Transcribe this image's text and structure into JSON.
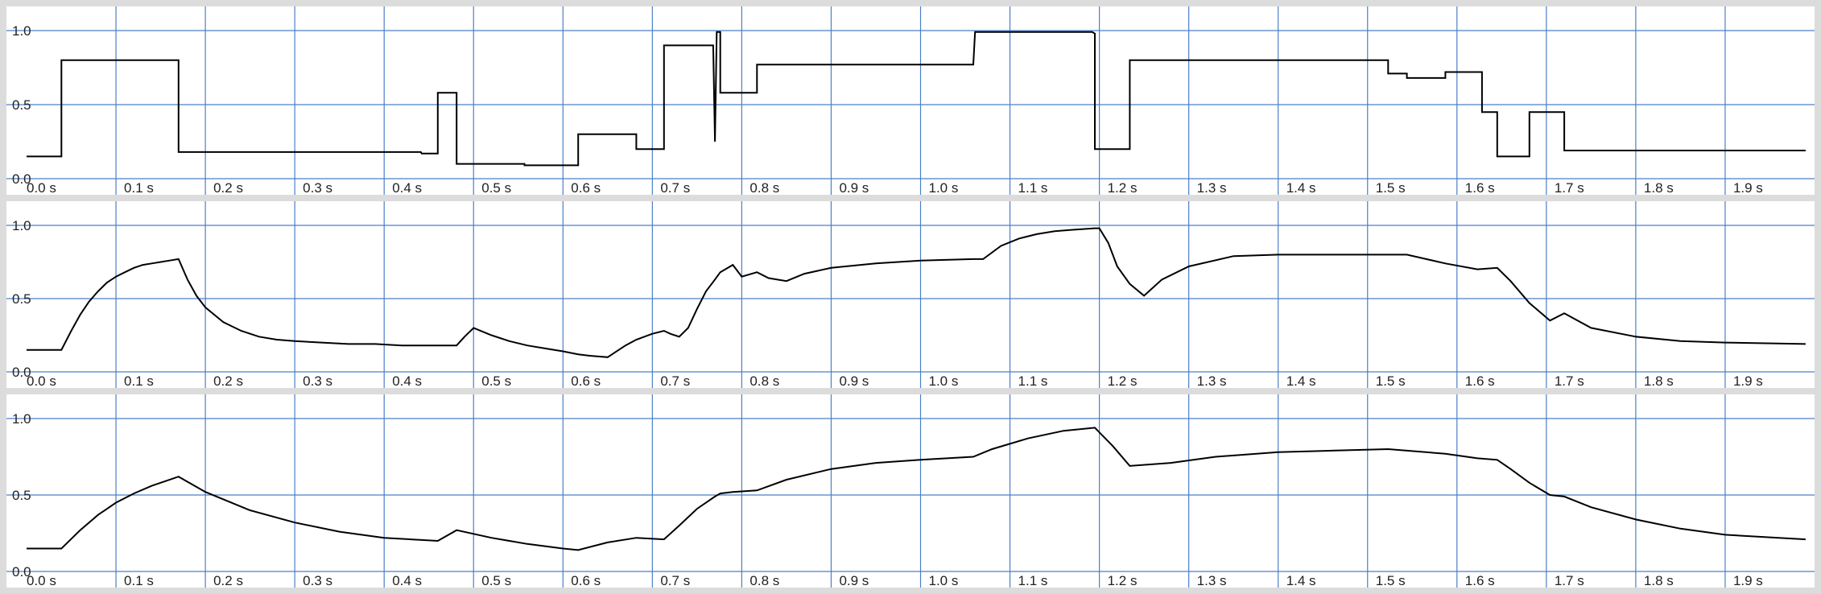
{
  "colors": {
    "background": "#dcdcdc",
    "panel": "#ffffff",
    "grid": "#4a7fc8",
    "line": "#000000"
  },
  "chart_data": [
    {
      "type": "line",
      "xlim": [
        0,
        2.0
      ],
      "ylim": [
        0,
        1
      ],
      "grid": true,
      "x_ticks": [
        "0.0 s",
        "0.1 s",
        "0.2 s",
        "0.3 s",
        "0.4 s",
        "0.5 s",
        "0.6 s",
        "0.7 s",
        "0.8 s",
        "0.9 s",
        "1.0 s",
        "1.1 s",
        "1.2 s",
        "1.3 s",
        "1.4 s",
        "1.5 s",
        "1.6 s",
        "1.7 s",
        "1.8 s",
        "1.9 s"
      ],
      "y_ticks": [
        "0.0",
        "0.5",
        "1.0"
      ],
      "series": [
        {
          "x": [
            0,
            0.039,
            0.039,
            0.17,
            0.17,
            0.441,
            0.442,
            0.46,
            0.46,
            0.481,
            0.481,
            0.557,
            0.557,
            0.617,
            0.617,
            0.682,
            0.682,
            0.713,
            0.713,
            0.768,
            0.77,
            0.772,
            0.776,
            0.776,
            0.817,
            0.817,
            1.059,
            1.061,
            1.076,
            1.076,
            1.192,
            1.195,
            1.195,
            1.234,
            1.234,
            1.523,
            1.523,
            1.544,
            1.544,
            1.587,
            1.587,
            1.623,
            1.623,
            1.628,
            1.628,
            1.645,
            1.645,
            1.681,
            1.681,
            1.704,
            1.704,
            1.72,
            1.72,
            1.99
          ],
          "y": [
            0.15,
            0.15,
            0.8,
            0.8,
            0.18,
            0.18,
            0.17,
            0.17,
            0.58,
            0.58,
            0.1,
            0.1,
            0.09,
            0.09,
            0.3,
            0.3,
            0.2,
            0.2,
            0.9,
            0.9,
            0.25,
            0.99,
            0.99,
            0.58,
            0.58,
            0.77,
            0.77,
            0.99,
            0.99,
            0.99,
            0.99,
            0.98,
            0.2,
            0.2,
            0.8,
            0.8,
            0.71,
            0.71,
            0.68,
            0.68,
            0.72,
            0.72,
            0.72,
            0.72,
            0.45,
            0.45,
            0.15,
            0.15,
            0.45,
            0.45,
            0.45,
            0.45,
            0.19,
            0.19
          ]
        }
      ]
    },
    {
      "type": "line",
      "xlim": [
        0,
        2.0
      ],
      "ylim": [
        0,
        1
      ],
      "grid": true,
      "x_ticks": [
        "0.0 s",
        "0.1 s",
        "0.2 s",
        "0.3 s",
        "0.4 s",
        "0.5 s",
        "0.6 s",
        "0.7 s",
        "0.8 s",
        "0.9 s",
        "1.0 s",
        "1.1 s",
        "1.2 s",
        "1.3 s",
        "1.4 s",
        "1.5 s",
        "1.6 s",
        "1.7 s",
        "1.8 s",
        "1.9 s"
      ],
      "y_ticks": [
        "0.0",
        "0.5",
        "1.0"
      ],
      "series": [
        {
          "x": [
            0,
            0.039,
            0.05,
            0.06,
            0.07,
            0.08,
            0.09,
            0.1,
            0.11,
            0.12,
            0.13,
            0.14,
            0.15,
            0.16,
            0.17,
            0.18,
            0.19,
            0.2,
            0.22,
            0.24,
            0.26,
            0.28,
            0.3,
            0.33,
            0.36,
            0.39,
            0.42,
            0.46,
            0.481,
            0.49,
            0.5,
            0.52,
            0.54,
            0.56,
            0.58,
            0.6,
            0.617,
            0.63,
            0.65,
            0.67,
            0.682,
            0.7,
            0.713,
            0.72,
            0.73,
            0.74,
            0.75,
            0.76,
            0.77,
            0.776,
            0.79,
            0.8,
            0.817,
            0.83,
            0.85,
            0.87,
            0.9,
            0.95,
            1.0,
            1.059,
            1.07,
            1.09,
            1.11,
            1.13,
            1.15,
            1.17,
            1.195,
            1.2,
            1.21,
            1.22,
            1.234,
            1.25,
            1.27,
            1.3,
            1.35,
            1.4,
            1.45,
            1.523,
            1.544,
            1.587,
            1.623,
            1.645,
            1.66,
            1.681,
            1.704,
            1.72,
            1.75,
            1.8,
            1.85,
            1.9,
            1.99
          ],
          "y": [
            0.15,
            0.15,
            0.28,
            0.39,
            0.48,
            0.55,
            0.61,
            0.65,
            0.68,
            0.71,
            0.73,
            0.74,
            0.75,
            0.76,
            0.77,
            0.63,
            0.52,
            0.44,
            0.34,
            0.28,
            0.24,
            0.22,
            0.21,
            0.2,
            0.19,
            0.19,
            0.18,
            0.18,
            0.18,
            0.24,
            0.3,
            0.25,
            0.21,
            0.18,
            0.16,
            0.14,
            0.12,
            0.11,
            0.1,
            0.18,
            0.22,
            0.26,
            0.28,
            0.26,
            0.24,
            0.3,
            0.43,
            0.55,
            0.63,
            0.68,
            0.73,
            0.65,
            0.68,
            0.64,
            0.62,
            0.67,
            0.71,
            0.74,
            0.76,
            0.77,
            0.77,
            0.86,
            0.91,
            0.94,
            0.96,
            0.97,
            0.98,
            0.98,
            0.88,
            0.72,
            0.6,
            0.52,
            0.63,
            0.72,
            0.79,
            0.8,
            0.8,
            0.8,
            0.8,
            0.74,
            0.7,
            0.71,
            0.62,
            0.47,
            0.35,
            0.4,
            0.3,
            0.24,
            0.21,
            0.2,
            0.19
          ]
        }
      ]
    },
    {
      "type": "line",
      "xlim": [
        0,
        2.0
      ],
      "ylim": [
        0,
        1
      ],
      "grid": true,
      "x_ticks": [
        "0.0 s",
        "0.1 s",
        "0.2 s",
        "0.3 s",
        "0.4 s",
        "0.5 s",
        "0.6 s",
        "0.7 s",
        "0.8 s",
        "0.9 s",
        "1.0 s",
        "1.1 s",
        "1.2 s",
        "1.3 s",
        "1.4 s",
        "1.5 s",
        "1.6 s",
        "1.7 s",
        "1.8 s",
        "1.9 s"
      ],
      "y_ticks": [
        "0.0",
        "0.5",
        "1.0"
      ],
      "series": [
        {
          "x": [
            0,
            0.039,
            0.06,
            0.08,
            0.1,
            0.12,
            0.14,
            0.17,
            0.2,
            0.25,
            0.3,
            0.35,
            0.4,
            0.46,
            0.481,
            0.52,
            0.56,
            0.6,
            0.617,
            0.65,
            0.682,
            0.713,
            0.73,
            0.75,
            0.77,
            0.776,
            0.79,
            0.817,
            0.85,
            0.9,
            0.95,
            1.0,
            1.059,
            1.08,
            1.12,
            1.16,
            1.195,
            1.215,
            1.234,
            1.28,
            1.33,
            1.4,
            1.46,
            1.523,
            1.544,
            1.587,
            1.623,
            1.645,
            1.66,
            1.681,
            1.704,
            1.72,
            1.75,
            1.8,
            1.85,
            1.9,
            1.99
          ],
          "y": [
            0.15,
            0.15,
            0.27,
            0.37,
            0.45,
            0.51,
            0.56,
            0.62,
            0.52,
            0.4,
            0.32,
            0.26,
            0.22,
            0.2,
            0.27,
            0.22,
            0.18,
            0.15,
            0.14,
            0.19,
            0.22,
            0.21,
            0.3,
            0.41,
            0.49,
            0.51,
            0.52,
            0.53,
            0.6,
            0.67,
            0.71,
            0.73,
            0.75,
            0.8,
            0.87,
            0.92,
            0.94,
            0.82,
            0.69,
            0.71,
            0.75,
            0.78,
            0.79,
            0.8,
            0.79,
            0.77,
            0.74,
            0.73,
            0.67,
            0.58,
            0.5,
            0.49,
            0.42,
            0.34,
            0.28,
            0.24,
            0.21
          ]
        }
      ]
    }
  ]
}
